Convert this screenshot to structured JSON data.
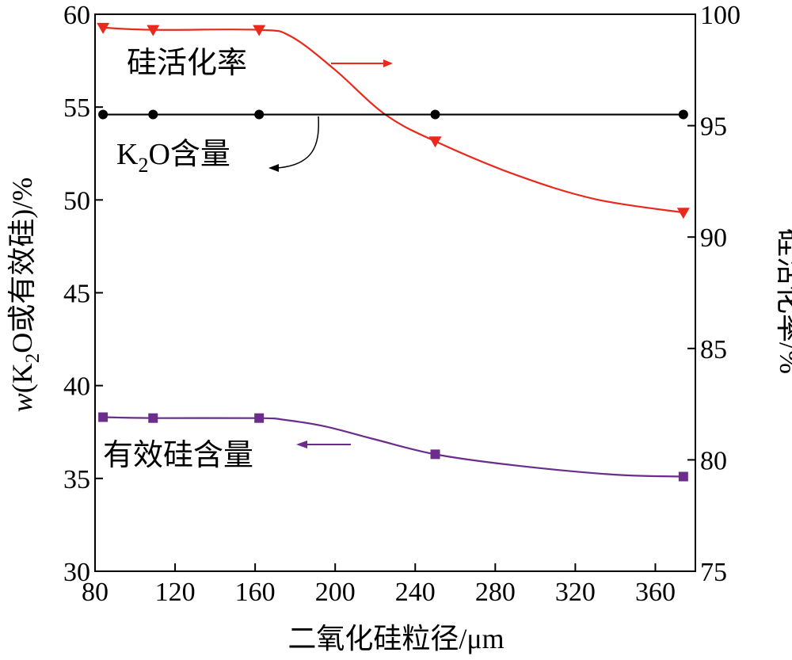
{
  "chart_data": {
    "type": "line",
    "xlabel": "二氧化硅粒径/μm",
    "ylabel_left": {
      "italic": "w",
      "prefix": "(K",
      "sub": "2",
      "suffix": "O或有效硅)/%"
    },
    "ylabel_right": "硅活化率/%",
    "xlim": [
      80,
      380
    ],
    "ylim_left": [
      30,
      60
    ],
    "ylim_right": [
      75,
      100
    ],
    "xticks": [
      80,
      120,
      160,
      200,
      240,
      280,
      320,
      360
    ],
    "yticks_left": [
      30,
      35,
      40,
      45,
      50,
      55,
      60
    ],
    "yticks_right": [
      75,
      80,
      85,
      90,
      95,
      100
    ],
    "grid": false,
    "series": [
      {
        "name": "硅活化率",
        "axis": "right",
        "color": "#e8291c",
        "marker": "triangle-down",
        "x": [
          84,
          109,
          162,
          250,
          374
        ],
        "y": [
          99.4,
          99.3,
          99.3,
          94.3,
          91.1
        ],
        "curve_x": [
          84,
          109,
          162,
          178,
          200,
          225,
          250,
          290,
          330,
          374
        ],
        "curve_y": [
          99.4,
          99.3,
          99.3,
          99.0,
          97.5,
          95.5,
          94.3,
          92.8,
          91.7,
          91.1
        ]
      },
      {
        "name": "K₂O含量",
        "label_parts": {
          "prefix": "K",
          "sub": "2",
          "suffix": "O含量"
        },
        "axis": "left",
        "color": "#000000",
        "marker": "circle",
        "x": [
          84,
          109,
          162,
          250,
          374
        ],
        "y": [
          54.6,
          54.6,
          54.6,
          54.6,
          54.6
        ]
      },
      {
        "name": "有效硅含量",
        "axis": "left",
        "color": "#6b2c8c",
        "marker": "square",
        "x": [
          84,
          109,
          162,
          250,
          374
        ],
        "y": [
          38.3,
          38.25,
          38.25,
          36.3,
          35.1
        ],
        "curve_x": [
          84,
          109,
          162,
          175,
          195,
          220,
          250,
          290,
          340,
          374
        ],
        "curve_y": [
          38.3,
          38.25,
          38.25,
          38.15,
          37.8,
          37.1,
          36.3,
          35.7,
          35.2,
          35.1
        ]
      }
    ]
  }
}
